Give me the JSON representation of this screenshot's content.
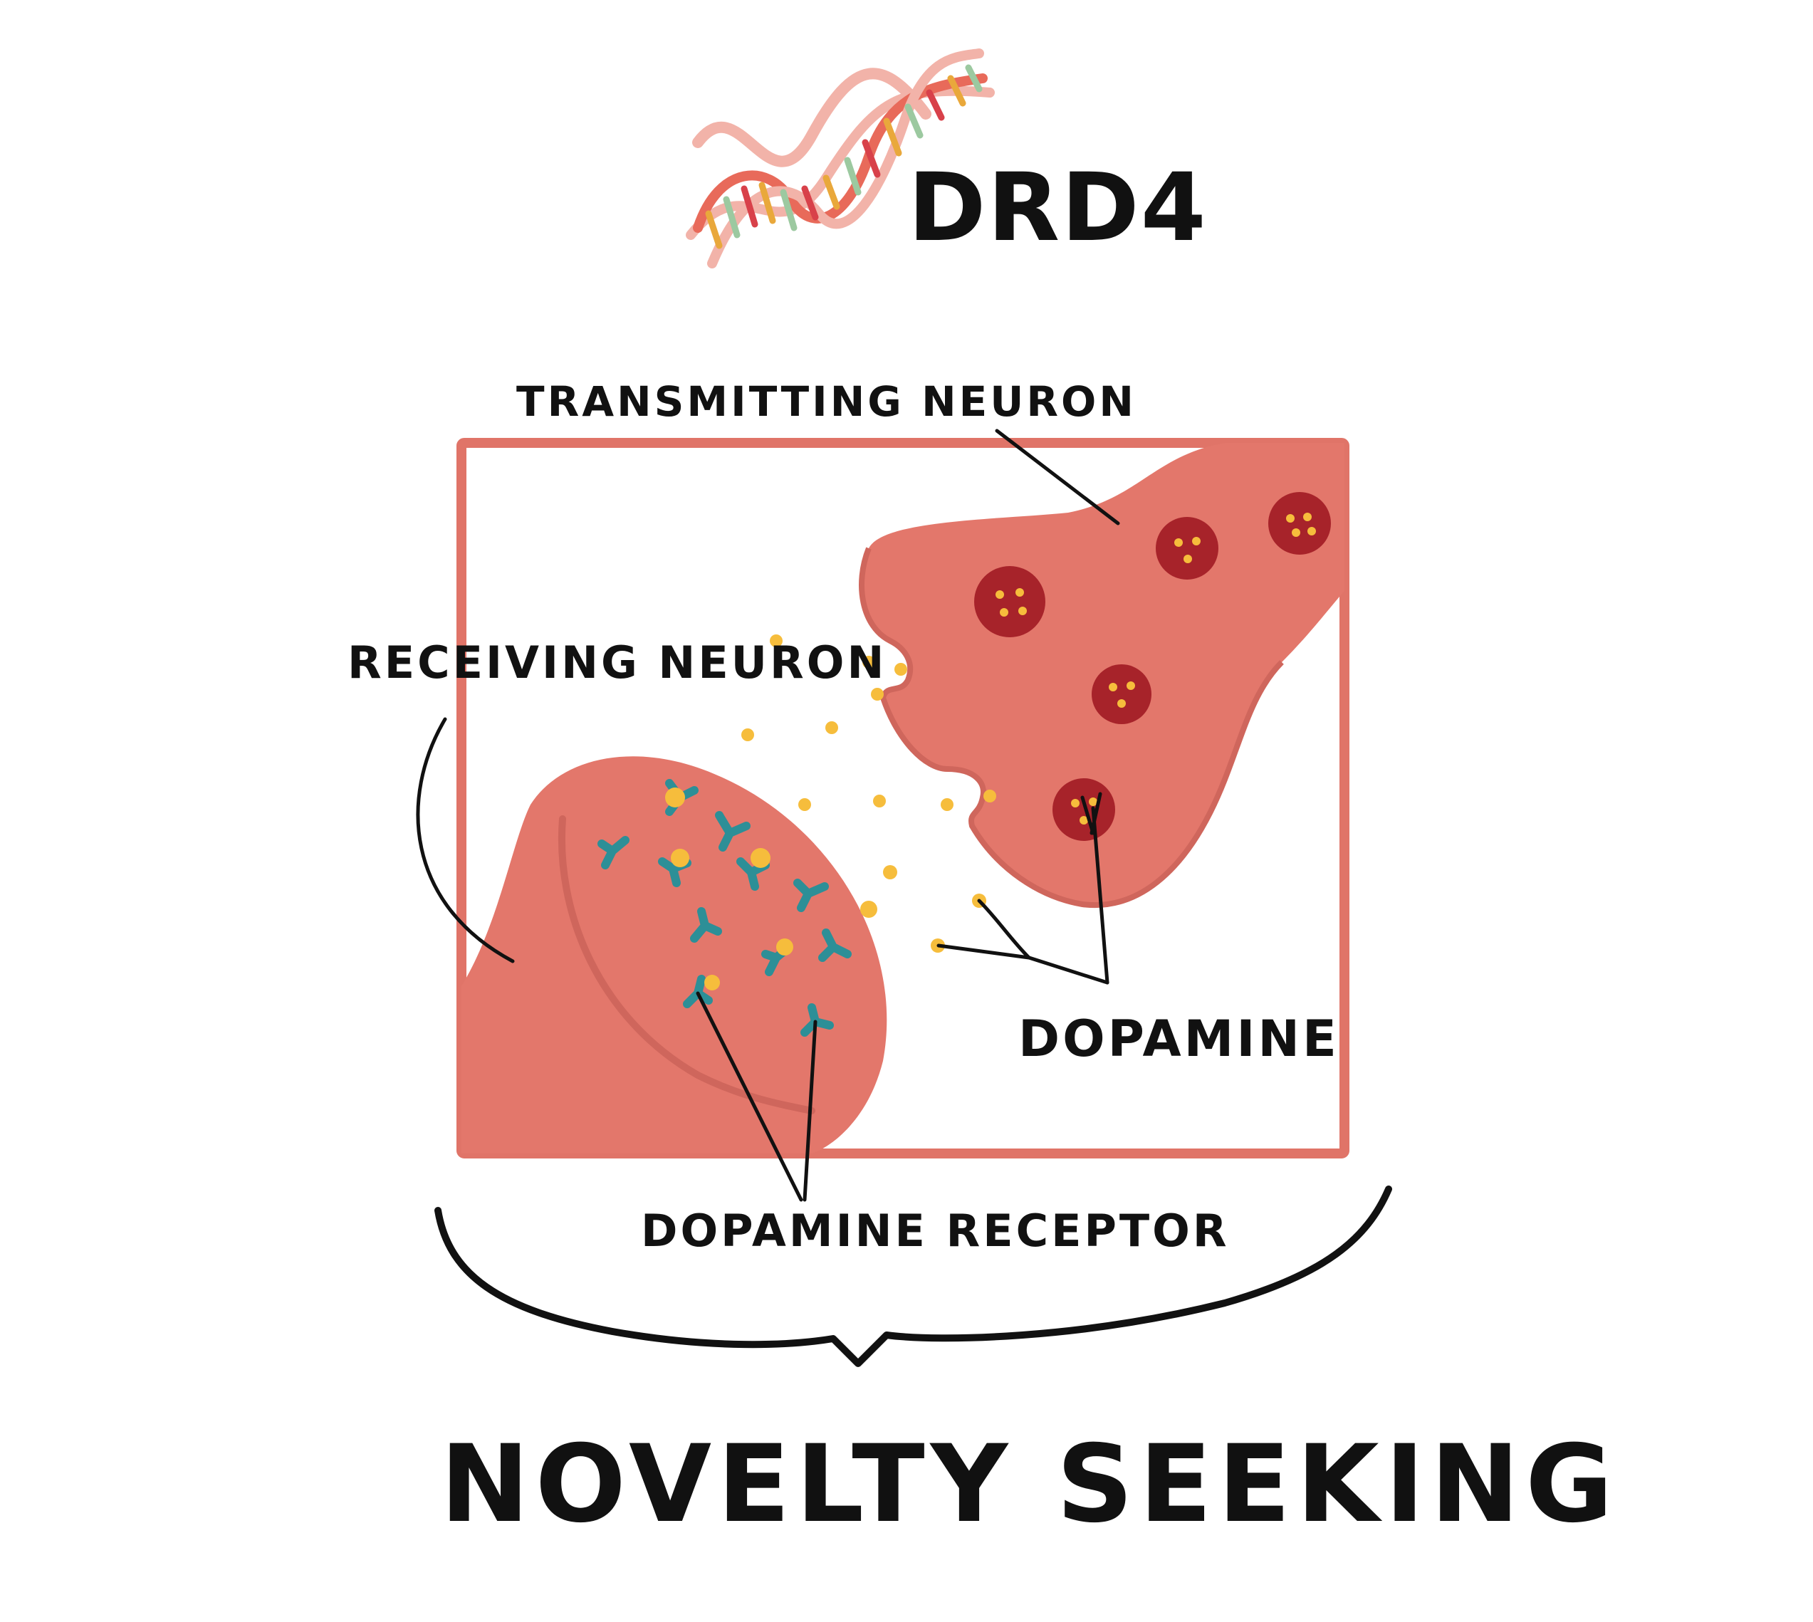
{
  "gene": "DRD4",
  "labels": {
    "transmitting_neuron": "TRANSMITTING NEURON",
    "receiving_neuron": "RECEIVING NEURON",
    "dopamine": "DOPAMINE",
    "dopamine_receptor": "DOPAMINE RECEPTOR"
  },
  "trait": "NOVELTY SEEKING",
  "colors": {
    "frame": "#e07468",
    "neuron": "#e3776b",
    "neuron_edge": "#cf665c",
    "vesicle": "#a7232a",
    "dopamine": "#f6bd3c",
    "receptor": "#2d8f97",
    "ink": "#111111"
  },
  "icons": [
    "dna-helix-icon"
  ]
}
